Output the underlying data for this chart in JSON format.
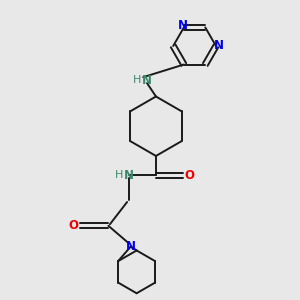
{
  "background_color": "#e8e8e8",
  "bond_color": "#1a1a1a",
  "nitrogen_color": "#0000ee",
  "oxygen_color": "#ee0000",
  "nh_color": "#3a8a6a",
  "figsize": [
    3.0,
    3.0
  ],
  "dpi": 100,
  "xlim": [
    0,
    10
  ],
  "ylim": [
    0,
    10
  ]
}
